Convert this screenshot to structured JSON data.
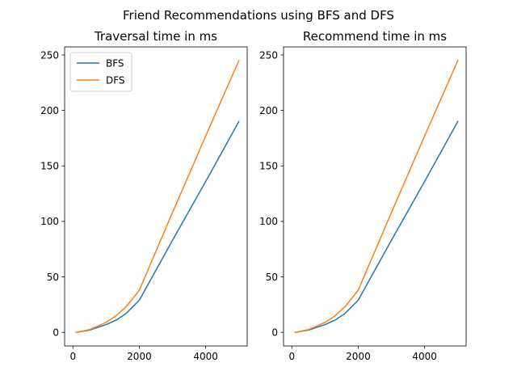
{
  "figure": {
    "title": "Friend Recommendations using BFS and DFS"
  },
  "chart_data": [
    {
      "type": "line",
      "title": "Traversal time in ms",
      "xlabel": "",
      "ylabel": "",
      "x": [
        100,
        500,
        700,
        1000,
        1300,
        1600,
        2000,
        3000,
        4000,
        5000
      ],
      "series": [
        {
          "name": "BFS",
          "color": "#1f77b4",
          "values": [
            0,
            2,
            4,
            7,
            11,
            17,
            29,
            83,
            136,
            190
          ]
        },
        {
          "name": "DFS",
          "color": "#ff7f0e",
          "values": [
            0,
            2.5,
            5,
            9,
            15,
            23,
            38,
            108,
            177,
            245
          ]
        }
      ],
      "xlim": [
        -250,
        5250
      ],
      "ylim": [
        -12.25,
        257.25
      ],
      "xticks": [
        0,
        2000,
        4000
      ],
      "yticks": [
        0,
        50,
        100,
        150,
        200,
        250
      ],
      "legend": "upper-left",
      "grid": false
    },
    {
      "type": "line",
      "title": "Recommend time in ms",
      "xlabel": "",
      "ylabel": "",
      "x": [
        100,
        500,
        700,
        1000,
        1300,
        1600,
        2000,
        3000,
        4000,
        5000
      ],
      "series": [
        {
          "name": "BFS",
          "color": "#1f77b4",
          "values": [
            0,
            2,
            4,
            7,
            11,
            17,
            29,
            83,
            136,
            190
          ]
        },
        {
          "name": "DFS",
          "color": "#ff7f0e",
          "values": [
            0,
            2.5,
            5,
            9,
            15,
            23,
            38,
            108,
            177,
            245
          ]
        }
      ],
      "xlim": [
        -250,
        5250
      ],
      "ylim": [
        -12.25,
        257.25
      ],
      "xticks": [
        0,
        2000,
        4000
      ],
      "yticks": [
        0,
        50,
        100,
        150,
        200,
        250
      ],
      "legend": "none",
      "grid": false
    }
  ]
}
